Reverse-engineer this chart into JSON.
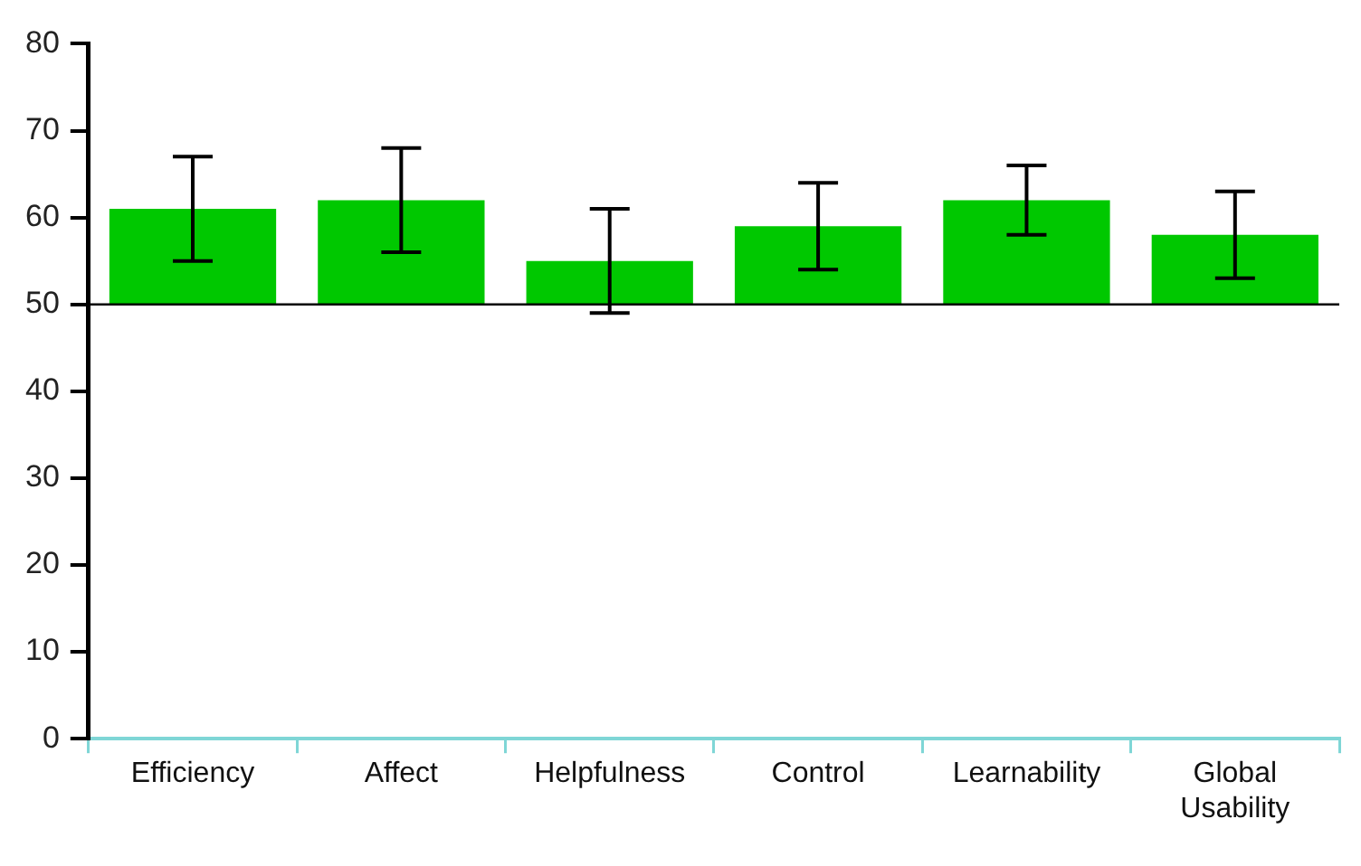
{
  "chart_data": {
    "type": "bar",
    "categories": [
      "Efficiency",
      "Affect",
      "Helpfulness",
      "Control",
      "Learnability",
      "Global Usability"
    ],
    "base": [
      50,
      50,
      50,
      50,
      50,
      50
    ],
    "values": [
      11,
      12,
      5,
      9,
      12,
      8
    ],
    "errors": [
      [
        55,
        67
      ],
      [
        56,
        68
      ],
      [
        49,
        61
      ],
      [
        54,
        64
      ],
      [
        58,
        66
      ],
      [
        53,
        63
      ]
    ],
    "color": "#00c800",
    "ylim": [
      0,
      80
    ],
    "yticks": [
      0,
      10,
      20,
      30,
      40,
      50,
      60,
      70,
      80
    ],
    "ref_lines": [
      {
        "axis": "y",
        "value": 50,
        "color": "#000000"
      }
    ],
    "grid": false,
    "legend": false
  }
}
